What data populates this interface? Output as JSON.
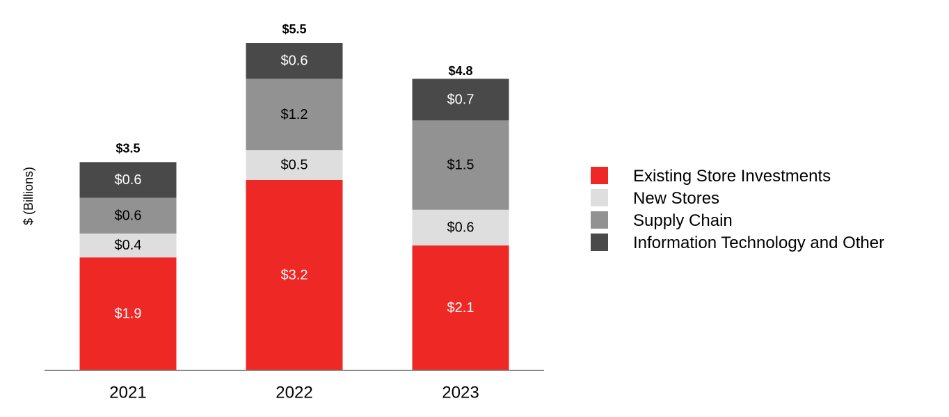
{
  "chart_data": {
    "type": "bar",
    "stacked": true,
    "title": "",
    "xlabel": "",
    "ylabel": "$ (Billions)",
    "ylim": [
      0,
      5.5
    ],
    "categories": [
      "2021",
      "2022",
      "2023"
    ],
    "series": [
      {
        "name": "Existing Store Investments",
        "color": "#ee2824",
        "text_color": "#ffffff",
        "values": [
          1.9,
          3.2,
          2.1
        ],
        "labels": [
          "$1.9",
          "$3.2",
          "$2.1"
        ]
      },
      {
        "name": "New Stores",
        "color": "#dedede",
        "text_color": "#000000",
        "values": [
          0.4,
          0.5,
          0.6
        ],
        "labels": [
          "$0.4",
          "$0.5",
          "$0.6"
        ]
      },
      {
        "name": "Supply Chain",
        "color": "#929292",
        "text_color": "#000000",
        "values": [
          0.6,
          1.2,
          1.5
        ],
        "labels": [
          "$0.6",
          "$1.2",
          "$1.5"
        ]
      },
      {
        "name": "Information Technology and Other",
        "color": "#494949",
        "text_color": "#ffffff",
        "values": [
          0.6,
          0.6,
          0.7
        ],
        "labels": [
          "$0.6",
          "$0.6",
          "$0.7"
        ]
      }
    ],
    "totals": [
      3.5,
      5.5,
      4.8
    ],
    "total_labels": [
      "$3.5",
      "$5.5",
      "$4.8"
    ],
    "legend_position": "right"
  }
}
